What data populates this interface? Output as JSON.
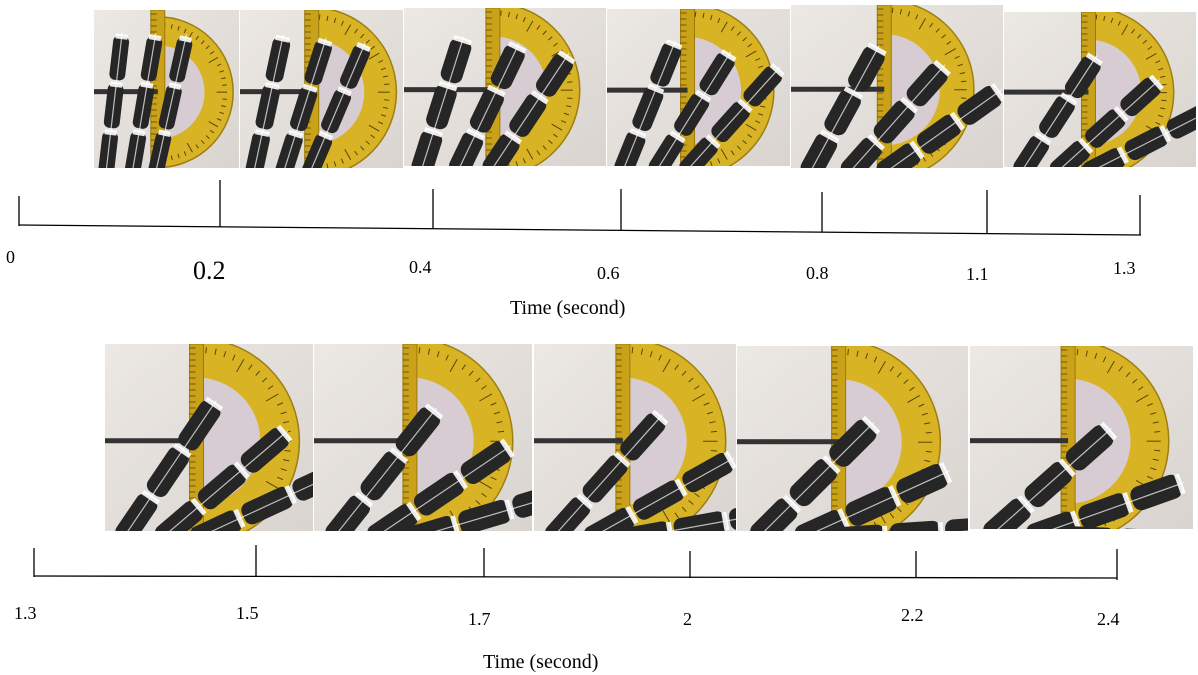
{
  "timeline_top": {
    "ticks": [
      "0",
      "0.2",
      "0.4",
      "0.6",
      "0.8",
      "1.1",
      "1.3"
    ],
    "axis_label": "Time (second)"
  },
  "timeline_bottom": {
    "ticks": [
      "1.3",
      "1.5",
      "1.7",
      "2",
      "2.2",
      "2.4"
    ],
    "axis_label": "Time (second)"
  },
  "frames_top": [
    {
      "bend_deg": 12
    },
    {
      "bend_deg": 22
    },
    {
      "bend_deg": 32
    },
    {
      "bend_deg": 40
    },
    {
      "bend_deg": 52
    },
    {
      "bend_deg": 60
    }
  ],
  "frames_bottom": [
    {
      "bend_deg": 62
    },
    {
      "bend_deg": 70
    },
    {
      "bend_deg": 76
    },
    {
      "bend_deg": 82
    },
    {
      "bend_deg": 88
    }
  ],
  "colors": {
    "protractor": "#d8b21c",
    "protractor_edge": "#9a7a0a",
    "finger": "#262626",
    "tendon": "#ffffff",
    "background_wall": "#d9d4cf",
    "line": "#000000"
  }
}
